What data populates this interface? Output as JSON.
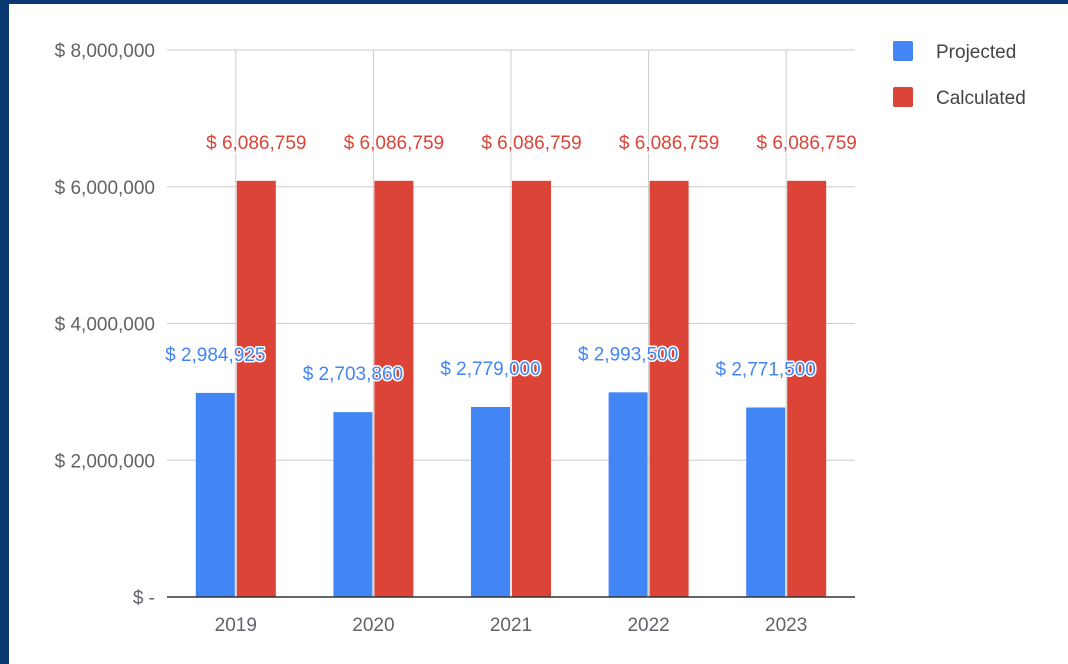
{
  "chart_data": {
    "type": "bar",
    "categories": [
      "2019",
      "2020",
      "2021",
      "2022",
      "2023"
    ],
    "series": [
      {
        "name": "Projected",
        "color": "#4285f4",
        "values": [
          2984925,
          2703860,
          2779000,
          2993500,
          2771500
        ],
        "labels": [
          "$ 2,984,925",
          "$ 2,703,860",
          "$ 2,779,000",
          "$ 2,993,500",
          "$ 2,771,500"
        ]
      },
      {
        "name": "Calculated",
        "color": "#db4437",
        "values": [
          6086759,
          6086759,
          6086759,
          6086759,
          6086759
        ],
        "labels": [
          "$ 6,086,759",
          "$ 6,086,759",
          "$ 6,086,759",
          "$ 6,086,759",
          "$ 6,086,759"
        ]
      }
    ],
    "ylim": [
      0,
      8000000
    ],
    "yticks": [
      {
        "value": 0,
        "label": "$ -"
      },
      {
        "value": 2000000,
        "label": "$ 2,000,000"
      },
      {
        "value": 4000000,
        "label": "$ 4,000,000"
      },
      {
        "value": 6000000,
        "label": "$ 6,000,000"
      },
      {
        "value": 8000000,
        "label": "$ 8,000,000"
      }
    ],
    "grid": true,
    "legend": "top-right"
  }
}
